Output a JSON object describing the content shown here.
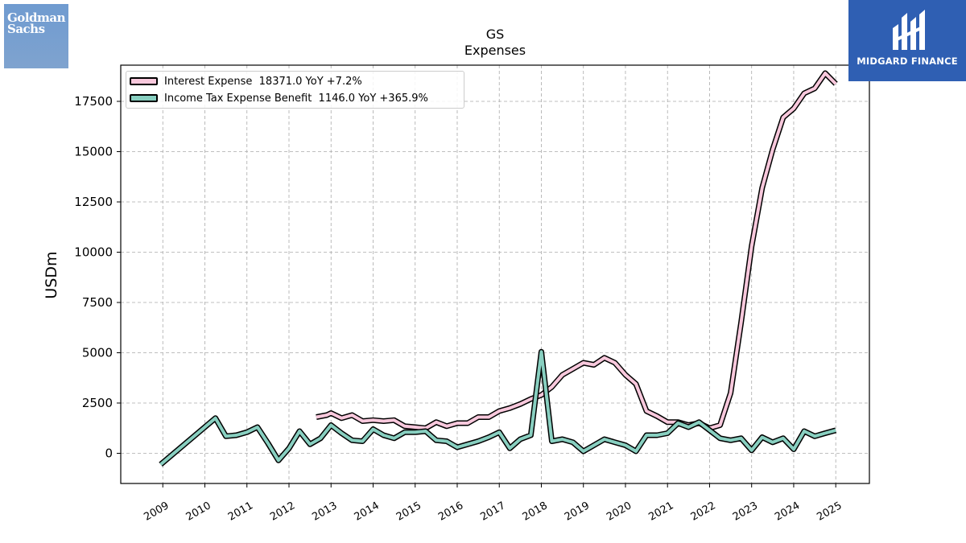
{
  "logos": {
    "left": {
      "line1": "Goldman",
      "line2": "Sachs",
      "bg": "#7aa0d1"
    },
    "right": {
      "text": "MIDGARD FINANCE",
      "bg": "#2f5fb3"
    }
  },
  "chart_data": {
    "type": "line",
    "title": "GS",
    "subtitle": "Expenses",
    "ylabel": "USDm",
    "xlabel": "",
    "ylim": [
      -1500,
      19300
    ],
    "xlim": [
      2008.0,
      2025.8
    ],
    "yticks": [
      0,
      2500,
      5000,
      7500,
      10000,
      12500,
      15000,
      17500
    ],
    "xtick_labels": [
      "2009",
      "2010",
      "2011",
      "2012",
      "2013",
      "2014",
      "2015",
      "2016",
      "2017",
      "2018",
      "2019",
      "2020",
      "2021",
      "2022",
      "2023",
      "2024",
      "2025"
    ],
    "grid": true,
    "legend_position": "upper-left",
    "series": [
      {
        "name": "Interest Expense  18371.0 YoY +7.2%",
        "color": "#f8c8dc",
        "points": [
          [
            2012.65,
            1800
          ],
          [
            2012.9,
            1900
          ],
          [
            2013.0,
            2000
          ],
          [
            2013.25,
            1750
          ],
          [
            2013.5,
            1900
          ],
          [
            2013.75,
            1600
          ],
          [
            2014.0,
            1650
          ],
          [
            2014.25,
            1600
          ],
          [
            2014.5,
            1650
          ],
          [
            2014.75,
            1350
          ],
          [
            2015.0,
            1300
          ],
          [
            2015.25,
            1250
          ],
          [
            2015.5,
            1550
          ],
          [
            2015.75,
            1350
          ],
          [
            2016.0,
            1500
          ],
          [
            2016.25,
            1500
          ],
          [
            2016.5,
            1800
          ],
          [
            2016.75,
            1800
          ],
          [
            2017.0,
            2100
          ],
          [
            2017.25,
            2250
          ],
          [
            2017.5,
            2450
          ],
          [
            2017.75,
            2700
          ],
          [
            2018.0,
            2900
          ],
          [
            2018.25,
            3300
          ],
          [
            2018.5,
            3900
          ],
          [
            2018.75,
            4200
          ],
          [
            2019.0,
            4500
          ],
          [
            2019.25,
            4400
          ],
          [
            2019.5,
            4750
          ],
          [
            2019.75,
            4500
          ],
          [
            2020.0,
            3900
          ],
          [
            2020.25,
            3450
          ],
          [
            2020.5,
            2100
          ],
          [
            2020.75,
            1850
          ],
          [
            2021.0,
            1550
          ],
          [
            2021.25,
            1550
          ],
          [
            2021.5,
            1400
          ],
          [
            2021.75,
            1500
          ],
          [
            2022.0,
            1250
          ],
          [
            2022.25,
            1400
          ],
          [
            2022.5,
            3000
          ],
          [
            2022.75,
            6500
          ],
          [
            2023.0,
            10300
          ],
          [
            2023.25,
            13200
          ],
          [
            2023.5,
            15100
          ],
          [
            2023.75,
            16700
          ],
          [
            2024.0,
            17150
          ],
          [
            2024.25,
            17900
          ],
          [
            2024.5,
            18150
          ],
          [
            2024.75,
            18900
          ],
          [
            2025.0,
            18371
          ]
        ]
      },
      {
        "name": "Income Tax Expense Benefit  1146.0 YoY +365.9%",
        "color": "#88cfc0",
        "points": [
          [
            2008.95,
            -550
          ],
          [
            2010.25,
            1750
          ],
          [
            2010.5,
            850
          ],
          [
            2010.75,
            900
          ],
          [
            2011.0,
            1050
          ],
          [
            2011.25,
            1300
          ],
          [
            2011.5,
            500
          ],
          [
            2011.75,
            -350
          ],
          [
            2012.0,
            250
          ],
          [
            2012.25,
            1100
          ],
          [
            2012.5,
            450
          ],
          [
            2012.75,
            750
          ],
          [
            2013.0,
            1400
          ],
          [
            2013.25,
            1000
          ],
          [
            2013.5,
            650
          ],
          [
            2013.75,
            600
          ],
          [
            2014.0,
            1200
          ],
          [
            2014.25,
            900
          ],
          [
            2014.5,
            750
          ],
          [
            2014.75,
            1050
          ],
          [
            2015.0,
            1050
          ],
          [
            2015.25,
            1100
          ],
          [
            2015.5,
            650
          ],
          [
            2015.75,
            600
          ],
          [
            2016.0,
            300
          ],
          [
            2016.25,
            450
          ],
          [
            2016.5,
            600
          ],
          [
            2016.75,
            800
          ],
          [
            2017.0,
            1050
          ],
          [
            2017.25,
            250
          ],
          [
            2017.5,
            700
          ],
          [
            2017.75,
            900
          ],
          [
            2018.0,
            5050
          ],
          [
            2018.25,
            600
          ],
          [
            2018.5,
            700
          ],
          [
            2018.75,
            550
          ],
          [
            2019.0,
            100
          ],
          [
            2019.25,
            400
          ],
          [
            2019.5,
            700
          ],
          [
            2019.75,
            550
          ],
          [
            2020.0,
            400
          ],
          [
            2020.25,
            100
          ],
          [
            2020.5,
            900
          ],
          [
            2020.75,
            900
          ],
          [
            2021.0,
            1000
          ],
          [
            2021.25,
            1500
          ],
          [
            2021.5,
            1300
          ],
          [
            2021.75,
            1550
          ],
          [
            2022.0,
            1150
          ],
          [
            2022.25,
            750
          ],
          [
            2022.5,
            650
          ],
          [
            2022.75,
            750
          ],
          [
            2023.0,
            150
          ],
          [
            2023.25,
            800
          ],
          [
            2023.5,
            550
          ],
          [
            2023.75,
            750
          ],
          [
            2024.0,
            200
          ],
          [
            2024.25,
            1100
          ],
          [
            2024.5,
            850
          ],
          [
            2024.75,
            1000
          ],
          [
            2025.0,
            1146
          ]
        ]
      }
    ]
  }
}
